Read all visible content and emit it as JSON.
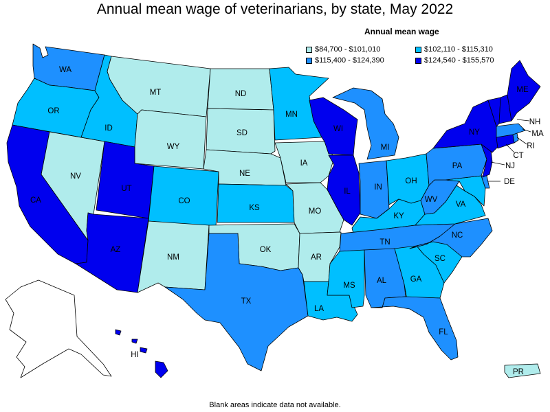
{
  "title": "Annual mean wage of veterinarians, by state, May 2022",
  "legend": {
    "title": "Annual mean wage",
    "items": [
      {
        "label": "$84,700 - $101,010",
        "color": "#b0ecec"
      },
      {
        "label": "$102,110 - $115,310",
        "color": "#00bfff"
      },
      {
        "label": "$115,400 - $124,390",
        "color": "#1e90ff"
      },
      {
        "label": "$124,540 - $155,570",
        "color": "#0000ee"
      }
    ]
  },
  "footnote": "Blank areas indicate data not available.",
  "colors": {
    "tier1": "#b0ecec",
    "tier2": "#00bfff",
    "tier3": "#1e90ff",
    "tier4": "#0000ee",
    "alaska": "#ffffff"
  },
  "states": {
    "WA": {
      "label": "WA",
      "tier": 3
    },
    "OR": {
      "label": "OR",
      "tier": 2
    },
    "CA": {
      "label": "CA",
      "tier": 4
    },
    "NV": {
      "label": "NV",
      "tier": 1
    },
    "ID": {
      "label": "ID",
      "tier": 2
    },
    "MT": {
      "label": "MT",
      "tier": 1
    },
    "WY": {
      "label": "WY",
      "tier": 1
    },
    "UT": {
      "label": "UT",
      "tier": 4
    },
    "AZ": {
      "label": "AZ",
      "tier": 4
    },
    "CO": {
      "label": "CO",
      "tier": 2
    },
    "NM": {
      "label": "NM",
      "tier": 1
    },
    "ND": {
      "label": "ND",
      "tier": 1
    },
    "SD": {
      "label": "SD",
      "tier": 1
    },
    "NE": {
      "label": "NE",
      "tier": 1
    },
    "KS": {
      "label": "KS",
      "tier": 2
    },
    "OK": {
      "label": "OK",
      "tier": 1
    },
    "TX": {
      "label": "TX",
      "tier": 3
    },
    "MN": {
      "label": "MN",
      "tier": 2
    },
    "IA": {
      "label": "IA",
      "tier": 1
    },
    "MO": {
      "label": "MO",
      "tier": 1
    },
    "AR": {
      "label": "AR",
      "tier": 1
    },
    "LA": {
      "label": "LA",
      "tier": 2
    },
    "WI": {
      "label": "WI",
      "tier": 4
    },
    "IL": {
      "label": "IL",
      "tier": 4
    },
    "MI": {
      "label": "MI",
      "tier": 3
    },
    "IN": {
      "label": "IN",
      "tier": 3
    },
    "OH": {
      "label": "OH",
      "tier": 2
    },
    "KY": {
      "label": "KY",
      "tier": 2
    },
    "TN": {
      "label": "TN",
      "tier": 3
    },
    "MS": {
      "label": "MS",
      "tier": 2
    },
    "AL": {
      "label": "AL",
      "tier": 3
    },
    "GA": {
      "label": "GA",
      "tier": 2
    },
    "FL": {
      "label": "FL",
      "tier": 3
    },
    "SC": {
      "label": "SC",
      "tier": 2
    },
    "NC": {
      "label": "NC",
      "tier": 3
    },
    "VA": {
      "label": "VA",
      "tier": 2
    },
    "WV": {
      "label": "WV",
      "tier": 3
    },
    "PA": {
      "label": "PA",
      "tier": 3
    },
    "NY": {
      "label": "NY",
      "tier": 4
    },
    "ME": {
      "label": "ME",
      "tier": 4
    },
    "NH": {
      "label": "NH",
      "tier": 4
    },
    "VT": {
      "label": "",
      "tier": 4
    },
    "MA": {
      "label": "MA",
      "tier": 3
    },
    "RI": {
      "label": "RI",
      "tier": 3
    },
    "CT": {
      "label": "CT",
      "tier": 4
    },
    "NJ": {
      "label": "NJ",
      "tier": 4
    },
    "DE": {
      "label": "DE",
      "tier": 3
    },
    "MD": {
      "label": "",
      "tier": 2
    },
    "HI": {
      "label": "HI",
      "tier": 4
    },
    "PR": {
      "label": "PR",
      "tier": 1
    }
  }
}
